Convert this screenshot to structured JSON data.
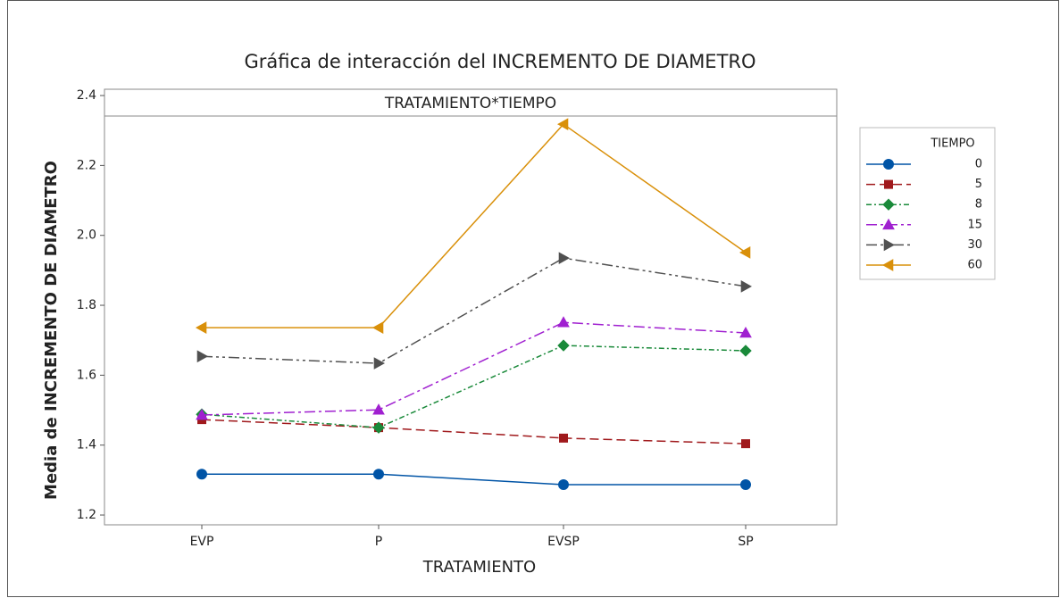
{
  "chart_data": {
    "type": "line",
    "title": "Gráfica de interacción del INCREMENTO DE DIAMETRO",
    "panel_label": "TRATAMIENTO*TIEMPO",
    "x_label": "TRATAMIENTO",
    "y_label": "Media de INCREMENTO DE DIAMETRO",
    "legend_title": "TIEMPO",
    "legend": "right",
    "categories": [
      "EVP",
      "P",
      "EVSP",
      "SP"
    ],
    "ylim": [
      1.172,
      2.418
    ],
    "yticks": [
      {
        "value": 1.2,
        "label": "1.2"
      },
      1.4,
      1.6,
      1.8,
      {
        "value": 2.0,
        "label": "2.0"
      },
      2.2,
      2.4
    ],
    "series": [
      {
        "name": "0",
        "color": "#0054a6",
        "linestyle": "solid",
        "marker": "circle",
        "values": [
          1.317,
          1.317,
          1.287,
          1.287
        ]
      },
      {
        "name": "5",
        "color": "#a0191c",
        "linestyle": "dashed",
        "marker": "square",
        "values": [
          1.473,
          1.45,
          1.42,
          1.404
        ]
      },
      {
        "name": "8",
        "color": "#1a8a3a",
        "linestyle": "dotted-dash",
        "marker": "diamond",
        "values": [
          1.488,
          1.45,
          1.685,
          1.67
        ]
      },
      {
        "name": "15",
        "color": "#a020d0",
        "linestyle": "dashdot",
        "marker": "triangle-up",
        "values": [
          1.486,
          1.501,
          1.751,
          1.721
        ]
      },
      {
        "name": "30",
        "color": "#505050",
        "linestyle": "dashdotdot",
        "marker": "triangle-right",
        "values": [
          1.654,
          1.634,
          1.935,
          1.854
        ]
      },
      {
        "name": "60",
        "color": "#d9900a",
        "linestyle": "solid",
        "marker": "triangle-left",
        "values": [
          1.736,
          1.736,
          2.318,
          1.951
        ]
      }
    ]
  }
}
